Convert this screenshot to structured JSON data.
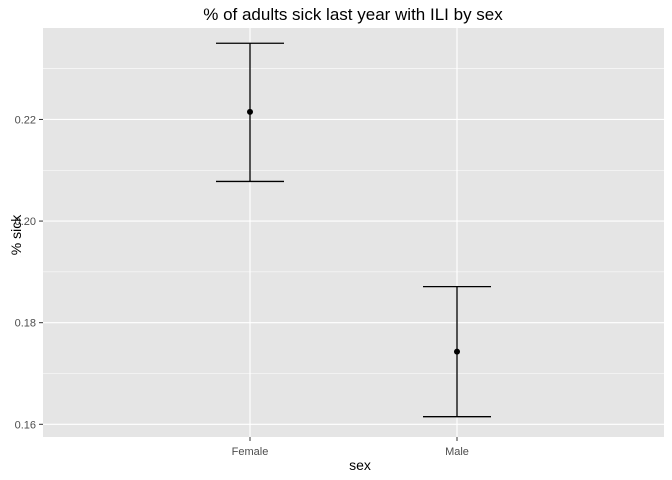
{
  "chart_data": {
    "type": "errorbar",
    "title": "% of adults sick last year with ILI by sex",
    "xlabel": "sex",
    "ylabel": "% sick",
    "categories": [
      "Female",
      "Male"
    ],
    "values": [
      0.2215,
      0.1743
    ],
    "lower": [
      0.2078,
      0.1615
    ],
    "upper": [
      0.235,
      0.1871
    ],
    "ylim": [
      0.1575,
      0.238
    ],
    "yticks": [
      0.16,
      0.18,
      0.2,
      0.22
    ],
    "ytick_labels": [
      "0.16",
      "0.18",
      "0.20",
      "0.22"
    ],
    "grid": true,
    "panel_color": "#e5e5e5",
    "grid_color": "#ffffff",
    "mark_color": "#000000"
  }
}
